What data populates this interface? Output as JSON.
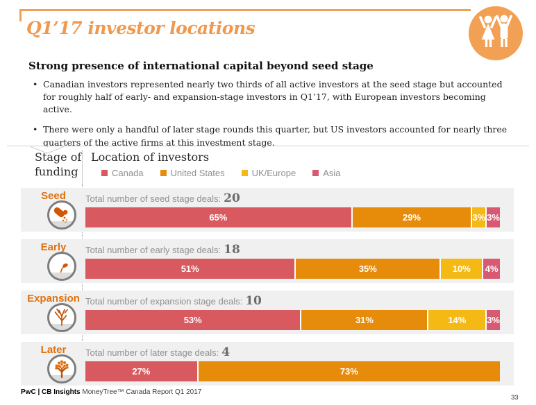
{
  "slide": {
    "title": "Q1’17 investor locations",
    "heading": "Strong presence of international capital beyond seed stage",
    "bullets": [
      "Canadian investors represented nearly two thirds of all active investors at the seed stage but accounted for roughly half of early- and expansion-stage investors in Q1’17, with European investors becoming active.",
      "There were only a handful of later stage rounds this quarter, but US investors accounted for nearly three quarters of the active firms at this investment stage."
    ],
    "footer": {
      "brand_bold": "PwC | CB Insights",
      "brand_rest": "MoneyTree™ Canada Report Q1 2017",
      "page_number": "33"
    }
  },
  "colors": {
    "title_orange": "#F0994E",
    "badge_orange": "#F2A054",
    "stage_label_orange": "#E0700D",
    "stage_icon_orange": "#D25706",
    "row_background": "#F1F0F0"
  },
  "icons": {
    "badge": "two-people-arms-raised-icon",
    "seed": "hand-pouring-seeds-icon",
    "early": "sprout-icon",
    "expansion": "bare-tree-icon",
    "later": "leafy-tree-icon"
  },
  "chart_data": {
    "type": "bar",
    "stacked": true,
    "orientation": "horizontal",
    "col_header_left": "Stage of funding",
    "col_header_right": "Location of investors",
    "legend_position": "top",
    "legend": [
      {
        "label": "Canada",
        "color": "#D85A60"
      },
      {
        "label": "United States",
        "color": "#E78B0B"
      },
      {
        "label": "UK/Europe",
        "color": "#F5B916"
      },
      {
        "label": "Asia",
        "color": "#D85A72"
      }
    ],
    "rows": [
      {
        "stage": "Seed",
        "total_label": "Total number of seed stage deals:",
        "total_value": "20",
        "segments": [
          {
            "series": "Canada",
            "value": 65,
            "label": "65%",
            "color_index": 0
          },
          {
            "series": "United States",
            "value": 29,
            "label": "29%",
            "color_index": 1
          },
          {
            "series": "UK/Europe",
            "value": 3,
            "label": "3%",
            "color_index": 2
          },
          {
            "series": "Asia",
            "value": 3,
            "label": "3%",
            "color_index": 3
          }
        ]
      },
      {
        "stage": "Early",
        "total_label": "Total number of early stage deals:",
        "total_value": "18",
        "segments": [
          {
            "series": "Canada",
            "value": 51,
            "label": "51%",
            "color_index": 0
          },
          {
            "series": "United States",
            "value": 35,
            "label": "35%",
            "color_index": 1
          },
          {
            "series": "UK/Europe",
            "value": 10,
            "label": "10%",
            "color_index": 2
          },
          {
            "series": "Asia",
            "value": 4,
            "label": "4%",
            "color_index": 3
          }
        ]
      },
      {
        "stage": "Expansion",
        "total_label": "Total number of expansion stage deals:",
        "total_value": "10",
        "segments": [
          {
            "series": "Canada",
            "value": 53,
            "label": "53%",
            "color_index": 0
          },
          {
            "series": "United States",
            "value": 31,
            "label": "31%",
            "color_index": 1
          },
          {
            "series": "UK/Europe",
            "value": 14,
            "label": "14%",
            "color_index": 2
          },
          {
            "series": "Asia",
            "value": 3,
            "label": "3%",
            "color_index": 3
          }
        ]
      },
      {
        "stage": "Later",
        "total_label": "Total number of later stage deals:",
        "total_value": "4",
        "segments": [
          {
            "series": "Canada",
            "value": 27,
            "label": "27%",
            "color_index": 0
          },
          {
            "series": "United States",
            "value": 73,
            "label": "73%",
            "color_index": 1
          }
        ]
      }
    ]
  }
}
